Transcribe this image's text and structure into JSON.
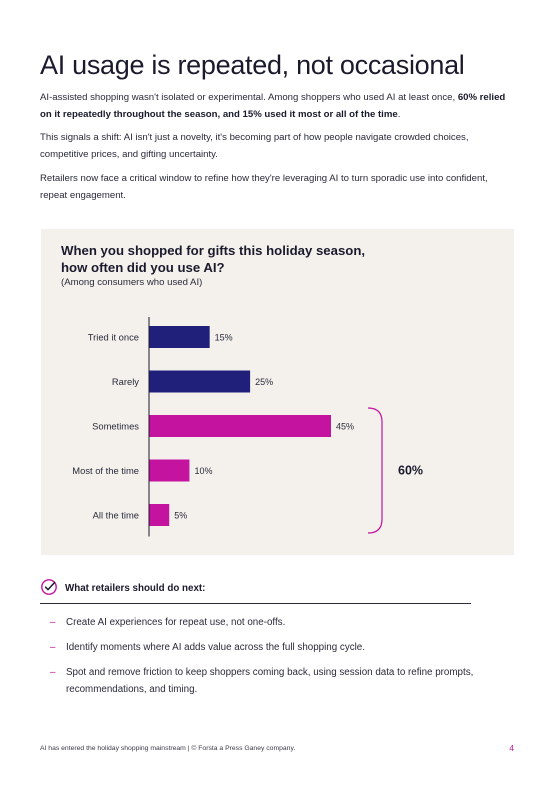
{
  "page": {
    "title": "AI usage is repeated, not occasional",
    "intro": {
      "p1_a": "AI-assisted shopping wasn't isolated or experimental. Among shoppers who used AI at least once, ",
      "p1_b": "60% relied on it repeatedly throughout the season, and 15% used it most or all of the time",
      "p1_c": ".",
      "p2": "This signals a shift: AI isn't just a novelty, it's becoming part of how people navigate crowded choices, competitive prices, and gifting uncertainty.",
      "p3": "Retailers now face a critical window to refine how they're leveraging AI to turn sporadic use into confident, repeat engagement."
    }
  },
  "chart": {
    "title": "When you shopped for gifts this holiday season, how often did you use AI?",
    "subtitle": "(Among consumers who used AI)",
    "bracket_label": "60%"
  },
  "chart_data": {
    "type": "bar",
    "orientation": "horizontal",
    "categories": [
      "Tried it once",
      "Rarely",
      "Sometimes",
      "Most of the time",
      "All the time"
    ],
    "values": [
      15,
      25,
      45,
      10,
      5
    ],
    "labels": [
      "15%",
      "25%",
      "45%",
      "10%",
      "5%"
    ],
    "colors": [
      "#20207a",
      "#20207a",
      "#c4139f",
      "#c4139f",
      "#c4139f"
    ],
    "xlim": [
      0,
      45
    ],
    "grid": false,
    "annotation": {
      "text": "60%",
      "covers": [
        "Sometimes",
        "Most of the time",
        "All the time"
      ]
    }
  },
  "recommendations": {
    "icon": "check-circle-icon",
    "heading": "What retailers should do next:",
    "items": [
      "Create AI experiences for repeat use, not one-offs.",
      "Identify moments where AI adds value across the full shopping cycle.",
      "Spot and remove friction to keep shoppers coming back, using session data to refine prompts, recommendations, and timing."
    ]
  },
  "footer": {
    "text": "AI has entered the holiday shopping mainstream | © Forsta a Press Ganey company.",
    "page_number": "4"
  },
  "colors": {
    "navy": "#20207a",
    "magenta": "#c4139f",
    "panel": "#f4f1ed"
  }
}
